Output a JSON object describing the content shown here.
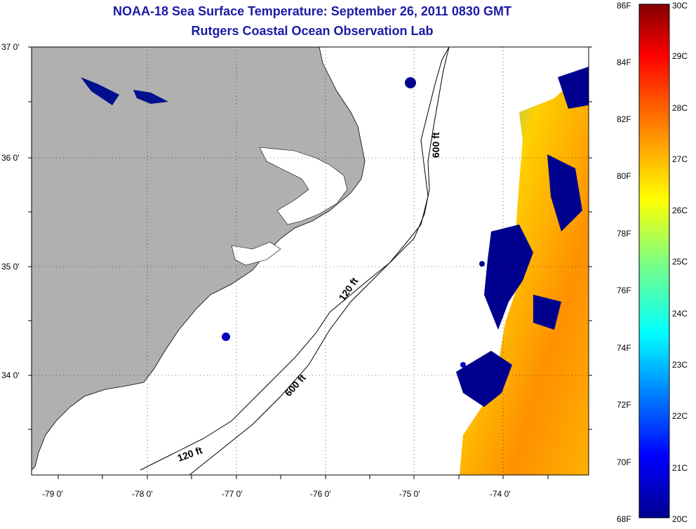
{
  "header": {
    "title": "NOAA-18 Sea Surface Temperature:  September 26, 2011 0830 GMT",
    "subtitle": "Rutgers Coastal Ocean Observation Lab"
  },
  "map": {
    "lat_labels": [
      "37 0'",
      "36 0'",
      "35 0'",
      "34 0'"
    ],
    "lon_labels": [
      "-79 0'",
      "-78 0'",
      "-77 0'",
      "-76 0'",
      "-75 0'",
      "-74 0'"
    ],
    "contour_labels": [
      "600 ft",
      "120 ft",
      "600 ft",
      "120 ft"
    ],
    "colors": {
      "land": "#b0b0b0",
      "ocean": "#ffffff",
      "cold": "#00008f",
      "warm": "#ff9900"
    }
  },
  "colorbar": {
    "fahrenheit": [
      "86F",
      "84F",
      "82F",
      "80F",
      "78F",
      "76F",
      "74F",
      "72F",
      "70F",
      "68F"
    ],
    "celsius": [
      "30C",
      "29C",
      "28C",
      "27C",
      "26C",
      "25C",
      "24C",
      "23C",
      "22C",
      "21C",
      "20C"
    ],
    "colormap": [
      "#00008f",
      "#0000ff",
      "#0080ff",
      "#00ffff",
      "#80ff80",
      "#ffff00",
      "#ff8000",
      "#ff0000",
      "#800000"
    ]
  }
}
